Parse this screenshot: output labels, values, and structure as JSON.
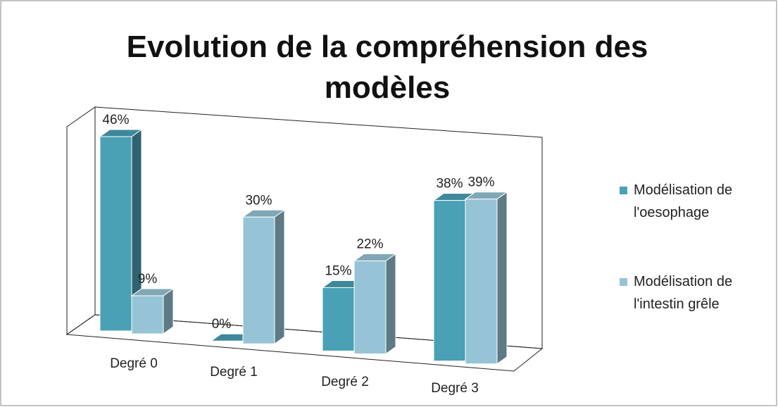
{
  "chart_data": {
    "type": "bar3d",
    "title": "Evolution de la compréhension des modèles",
    "categories": [
      "Degré 0",
      "Degré 1",
      "Degré 2",
      "Degré 3"
    ],
    "series": [
      {
        "name": "Modélisation de l'oesophage",
        "color": "#4aa0b5",
        "values": [
          46,
          0,
          15,
          38
        ],
        "value_labels": [
          "46%",
          "0%",
          "15%",
          "38%"
        ]
      },
      {
        "name": "Modélisation de l'intestin grêle",
        "color": "#96c4d6",
        "values": [
          9,
          30,
          22,
          39
        ],
        "value_labels": [
          "9%",
          "30%",
          "22%",
          "39%"
        ]
      }
    ],
    "legend": "right"
  }
}
